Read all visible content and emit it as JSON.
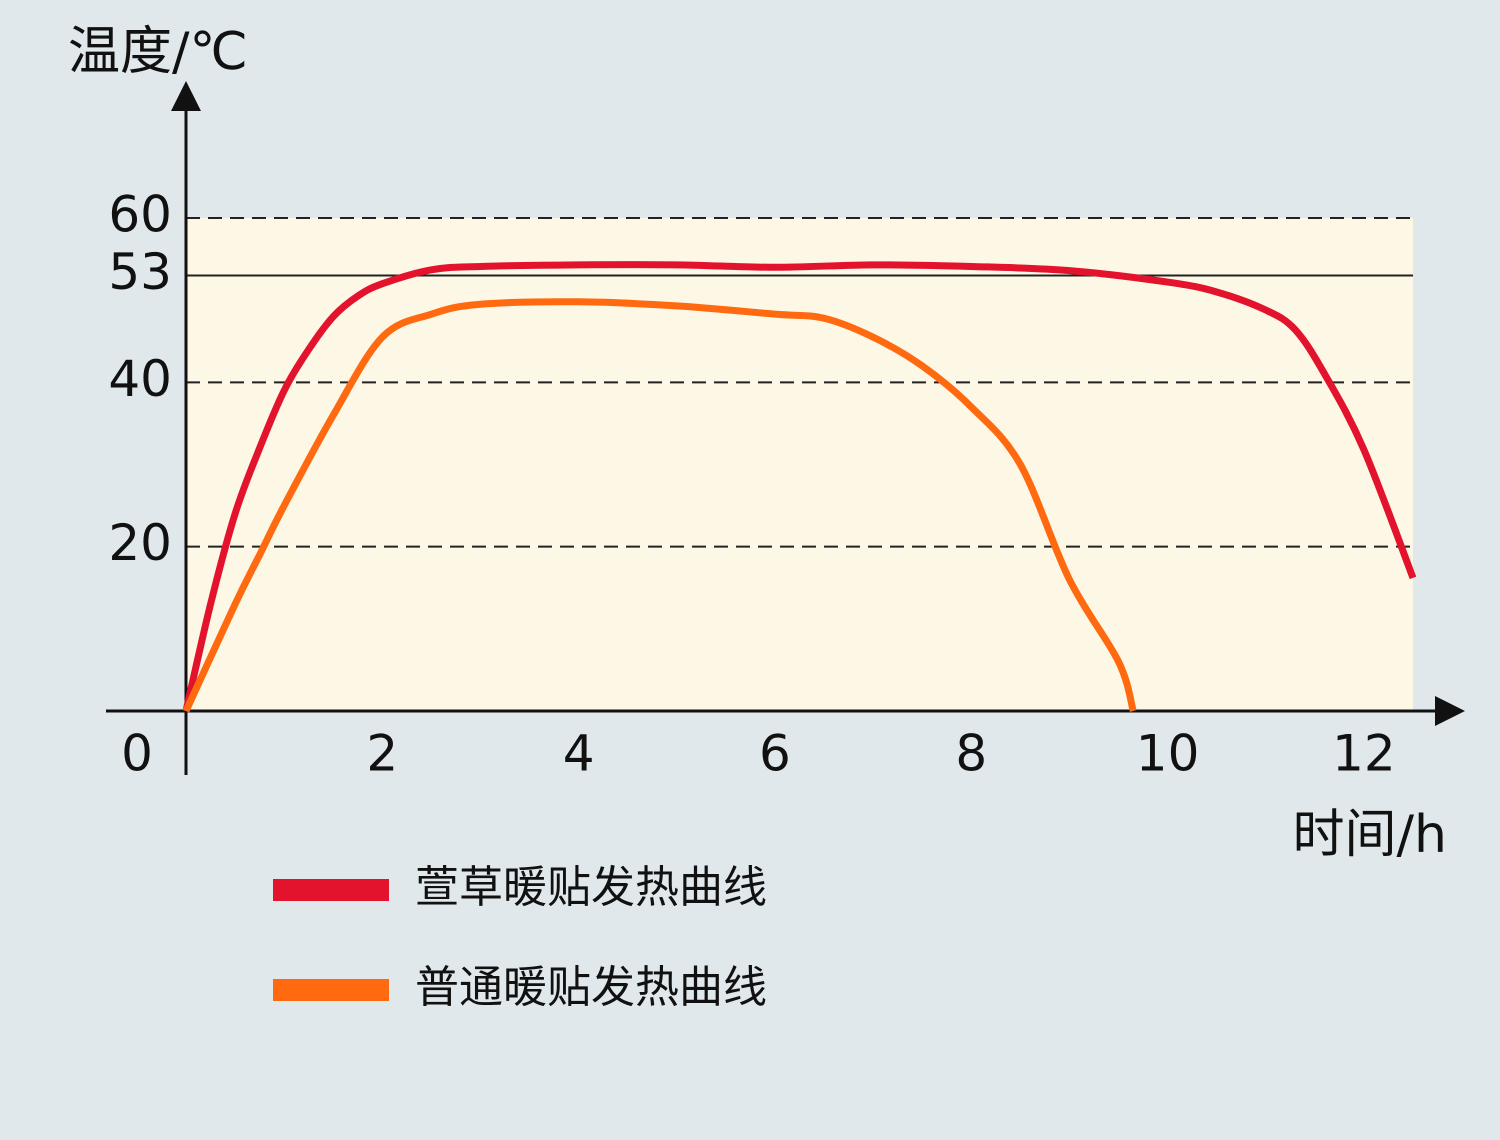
{
  "chart_data": {
    "type": "line",
    "y_label": "温度/℃",
    "x_label": "时间/h",
    "xlim": [
      0,
      12.5
    ],
    "ylim": [
      0,
      60
    ],
    "xticks": [
      0,
      2,
      4,
      6,
      8,
      10,
      12
    ],
    "yticks": [
      20,
      40,
      53,
      60
    ],
    "grid_styles": [
      "dashed",
      "dashed",
      "solid",
      "dashed"
    ],
    "plot_background": "#fdf8e6",
    "series": [
      {
        "name": "萱草暖贴发热曲线",
        "color": "#e3122d",
        "x": [
          0,
          0.25,
          0.5,
          0.75,
          1,
          1.25,
          1.5,
          1.75,
          2,
          2.5,
          3,
          4,
          5,
          6,
          7,
          8,
          9,
          10,
          10.5,
          11,
          11.3,
          11.6,
          12,
          12.5
        ],
        "values": [
          0,
          13,
          24,
          32,
          39,
          44,
          48,
          50.5,
          52,
          53.7,
          54.1,
          54.3,
          54.3,
          54,
          54.3,
          54.1,
          53.6,
          52.2,
          51,
          48.8,
          46.4,
          41,
          31.8,
          16.2
        ]
      },
      {
        "name": "普通暖贴发热曲线",
        "color": "#ff6a10",
        "x": [
          0,
          0.5,
          0.75,
          1,
          1.5,
          2,
          2.5,
          3,
          4,
          5,
          6,
          6.5,
          7,
          7.5,
          8,
          8.5,
          9,
          9.5,
          9.65
        ],
        "values": [
          0,
          13,
          19,
          25,
          36,
          45.5,
          48.3,
          49.5,
          49.8,
          49.3,
          48.3,
          47.8,
          45.5,
          42,
          37,
          30,
          16,
          6,
          0
        ]
      }
    ]
  }
}
